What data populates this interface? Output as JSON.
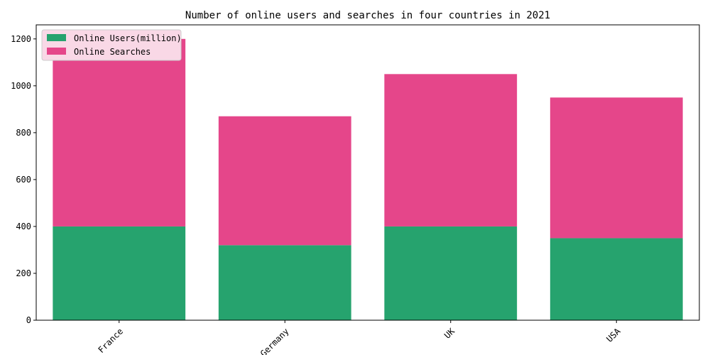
{
  "chart_data": {
    "type": "bar",
    "stacked": true,
    "title": "Number of online users and searches in four countries in 2021",
    "xlabel": "",
    "ylabel": "",
    "categories": [
      "France",
      "Germany",
      "UK",
      "USA"
    ],
    "series": [
      {
        "name": "Online Users(million)",
        "values": [
          400,
          320,
          400,
          350
        ],
        "color": "#26a36e"
      },
      {
        "name": "Online Searches",
        "values": [
          800,
          550,
          650,
          600
        ],
        "color": "#e5468a"
      }
    ],
    "ylim": [
      0,
      1260
    ],
    "yticks": [
      0,
      200,
      400,
      600,
      800,
      1000,
      1200
    ],
    "ytick_labels": [
      "0",
      "200",
      "400",
      "600",
      "800",
      "1000",
      "1200"
    ],
    "legend": {
      "placement": "top-left",
      "background": "#f9d8e6"
    },
    "grid": false
  }
}
